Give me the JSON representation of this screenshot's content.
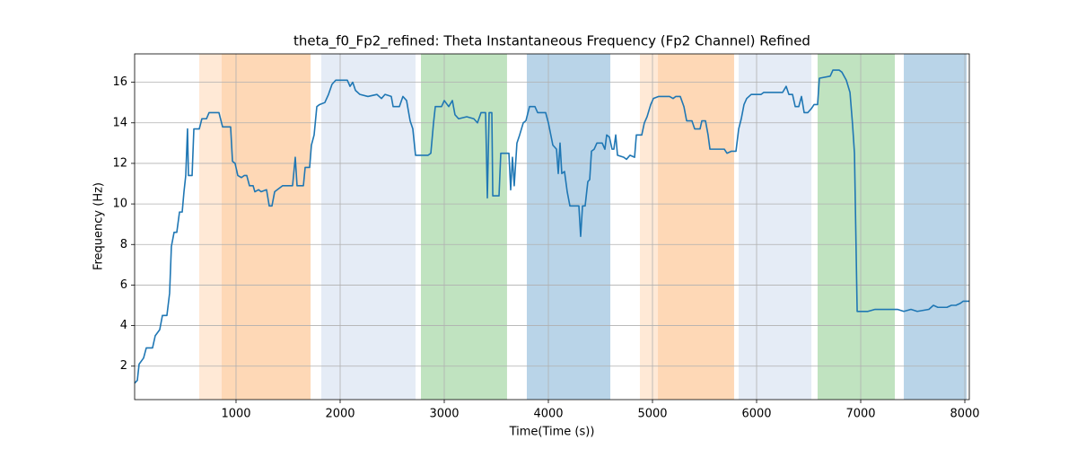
{
  "chart_data": {
    "type": "line",
    "title": "theta_f0_Fp2_refined: Theta Instantaneous Frequency (Fp2 Channel) Refined",
    "xlabel": "Time(Time (s))",
    "ylabel": "Frequency (Hz)",
    "color": "#1f77b4",
    "grid": true,
    "xlim": [
      26,
      8043
    ],
    "ylim": [
      0.35,
      17.4
    ],
    "xticks": [
      1000,
      2000,
      3000,
      4000,
      5000,
      6000,
      7000,
      8000
    ],
    "yticks": [
      2,
      4,
      6,
      8,
      10,
      12,
      14,
      16
    ],
    "bands": [
      {
        "start": 646,
        "end": 862,
        "color": "#ffe9d6"
      },
      {
        "start": 862,
        "end": 1716,
        "color": "#fed8b6"
      },
      {
        "start": 1819,
        "end": 2724,
        "color": "#e5ecf6"
      },
      {
        "start": 2776,
        "end": 3603,
        "color": "#c0e3c0"
      },
      {
        "start": 3793,
        "end": 4595,
        "color": "#b9d4e8"
      },
      {
        "start": 4879,
        "end": 5052,
        "color": "#ffe9d6"
      },
      {
        "start": 5052,
        "end": 5784,
        "color": "#fed8b6"
      },
      {
        "start": 5828,
        "end": 6526,
        "color": "#e5ecf6"
      },
      {
        "start": 6586,
        "end": 7328,
        "color": "#c0e3c0"
      },
      {
        "start": 7414,
        "end": 8017,
        "color": "#b9d4e8"
      }
    ],
    "x": [
      26,
      52,
      69,
      112,
      138,
      198,
      224,
      267,
      293,
      336,
      362,
      379,
      405,
      431,
      457,
      483,
      500,
      517,
      534,
      543,
      578,
      595,
      647,
      672,
      716,
      741,
      836,
      871,
      948,
      966,
      991,
      1017,
      1052,
      1078,
      1103,
      1129,
      1164,
      1181,
      1216,
      1241,
      1293,
      1319,
      1345,
      1371,
      1422,
      1448,
      1543,
      1569,
      1586,
      1647,
      1664,
      1707,
      1724,
      1750,
      1776,
      1802,
      1853,
      1888,
      1922,
      1957,
      2069,
      2095,
      2121,
      2147,
      2190,
      2267,
      2353,
      2397,
      2431,
      2491,
      2509,
      2569,
      2603,
      2638,
      2672,
      2698,
      2724,
      2845,
      2871,
      2897,
      2914,
      2974,
      3000,
      3043,
      3078,
      3103,
      3138,
      3216,
      3284,
      3319,
      3353,
      3397,
      3414,
      3431,
      3457,
      3466,
      3526,
      3543,
      3621,
      3638,
      3655,
      3672,
      3698,
      3724,
      3759,
      3784,
      3819,
      3871,
      3897,
      3922,
      3974,
      4000,
      4043,
      4078,
      4095,
      4112,
      4129,
      4155,
      4181,
      4207,
      4293,
      4310,
      4328,
      4353,
      4379,
      4397,
      4414,
      4440,
      4466,
      4517,
      4543,
      4560,
      4586,
      4612,
      4629,
      4647,
      4664,
      4724,
      4750,
      4784,
      4828,
      4845,
      4897,
      4922,
      4948,
      4983,
      5009,
      5060,
      5129,
      5164,
      5198,
      5224,
      5267,
      5302,
      5328,
      5379,
      5405,
      5457,
      5474,
      5509,
      5534,
      5552,
      5690,
      5716,
      5759,
      5802,
      5828,
      5853,
      5879,
      5905,
      5948,
      6043,
      6069,
      6250,
      6284,
      6310,
      6345,
      6371,
      6405,
      6431,
      6457,
      6491,
      6526,
      6552,
      6586,
      6603,
      6707,
      6733,
      6793,
      6819,
      6862,
      6897,
      6922,
      6940,
      6966,
      7069,
      7138,
      7353,
      7414,
      7483,
      7543,
      7655,
      7698,
      7741,
      7828,
      7871,
      7914,
      7957,
      7983,
      8043
    ],
    "values": [
      1.16,
      1.3,
      2.1,
      2.4,
      2.9,
      2.9,
      3.5,
      3.8,
      4.5,
      4.5,
      5.6,
      7.9,
      8.6,
      8.6,
      9.6,
      9.6,
      10.6,
      11.4,
      13.7,
      11.4,
      11.4,
      13.7,
      13.7,
      14.2,
      14.2,
      14.5,
      14.5,
      13.8,
      13.8,
      12.1,
      12.0,
      11.4,
      11.3,
      11.4,
      11.4,
      10.9,
      10.9,
      10.6,
      10.7,
      10.6,
      10.7,
      9.9,
      9.9,
      10.6,
      10.8,
      10.9,
      10.9,
      12.3,
      10.9,
      10.9,
      11.8,
      11.8,
      12.9,
      13.4,
      14.8,
      14.9,
      15.0,
      15.4,
      15.9,
      16.1,
      16.1,
      15.8,
      16.0,
      15.6,
      15.4,
      15.3,
      15.4,
      15.2,
      15.4,
      15.3,
      14.8,
      14.8,
      15.3,
      15.1,
      14.1,
      13.7,
      12.4,
      12.4,
      12.5,
      14.0,
      14.8,
      14.8,
      15.1,
      14.8,
      15.1,
      14.4,
      14.2,
      14.3,
      14.2,
      14.0,
      14.5,
      14.5,
      10.3,
      14.5,
      14.5,
      10.4,
      10.4,
      12.5,
      12.5,
      10.7,
      12.3,
      10.9,
      13.0,
      13.4,
      14.0,
      14.1,
      14.8,
      14.8,
      14.5,
      14.5,
      14.5,
      14.0,
      12.9,
      12.7,
      11.5,
      13.0,
      11.5,
      11.6,
      10.6,
      9.9,
      9.9,
      8.4,
      9.9,
      9.9,
      11.1,
      11.2,
      12.6,
      12.7,
      13.0,
      13.0,
      12.7,
      13.4,
      13.3,
      12.7,
      12.7,
      13.4,
      12.4,
      12.3,
      12.2,
      12.4,
      12.3,
      13.4,
      13.4,
      14.0,
      14.3,
      14.9,
      15.2,
      15.3,
      15.3,
      15.3,
      15.2,
      15.3,
      15.3,
      14.8,
      14.1,
      14.1,
      13.7,
      13.7,
      14.1,
      14.1,
      13.4,
      12.7,
      12.7,
      12.5,
      12.6,
      12.6,
      13.7,
      14.2,
      14.9,
      15.2,
      15.4,
      15.4,
      15.5,
      15.5,
      15.8,
      15.4,
      15.4,
      14.8,
      14.8,
      15.3,
      14.5,
      14.5,
      14.7,
      14.9,
      14.9,
      16.2,
      16.3,
      16.6,
      16.6,
      16.5,
      16.1,
      15.5,
      13.9,
      12.5,
      4.7,
      4.7,
      4.8,
      4.8,
      4.7,
      4.8,
      4.7,
      4.8,
      5.0,
      4.9,
      4.9,
      5.0,
      5.0,
      5.1,
      5.2,
      5.2
    ]
  }
}
